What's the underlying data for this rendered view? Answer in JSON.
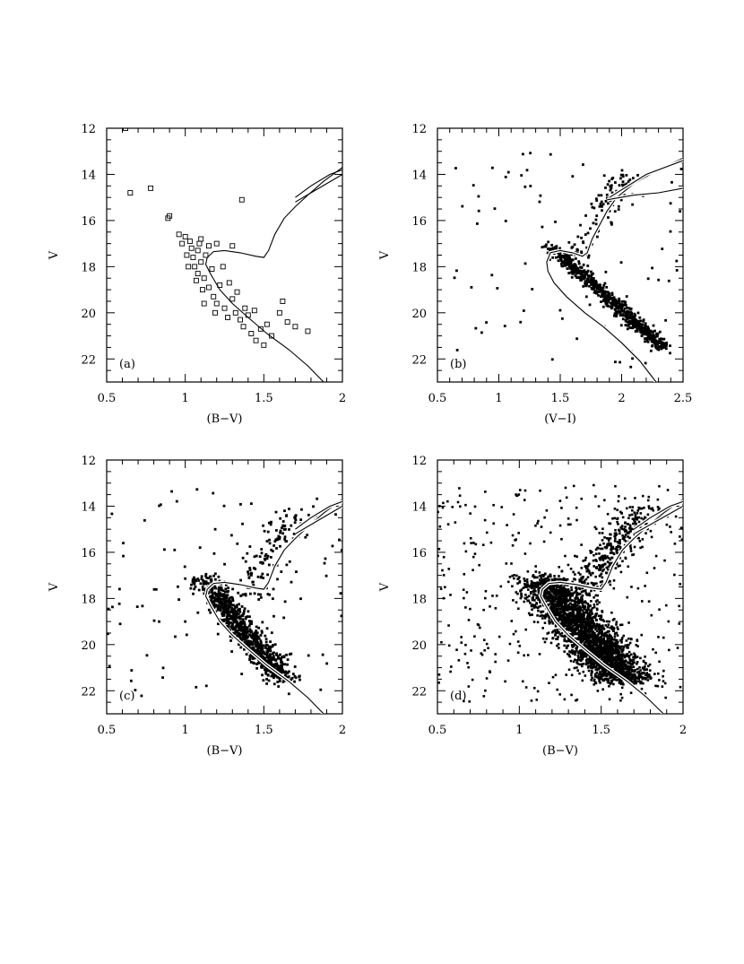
{
  "chart_data": [
    {
      "type": "scatter",
      "panel_label": "(a)",
      "xlabel": "(B−V)",
      "ylabel": "V",
      "xlim": [
        0.5,
        2
      ],
      "ylim": [
        12,
        23
      ],
      "y_inverted": true,
      "xticks": [
        "0.5",
        "1",
        "1.5",
        "2"
      ],
      "yticks": [
        "12",
        "14",
        "16",
        "18",
        "20",
        "22"
      ],
      "marker": "open-square",
      "points": [
        [
          0.62,
          12.0
        ],
        [
          0.65,
          14.8
        ],
        [
          0.78,
          14.6
        ],
        [
          0.89,
          15.9
        ],
        [
          0.9,
          15.8
        ],
        [
          0.96,
          16.6
        ],
        [
          0.98,
          17.0
        ],
        [
          1.0,
          16.7
        ],
        [
          1.01,
          17.5
        ],
        [
          1.03,
          16.9
        ],
        [
          1.05,
          17.6
        ],
        [
          1.06,
          18.0
        ],
        [
          1.08,
          17.3
        ],
        [
          1.08,
          18.3
        ],
        [
          1.1,
          17.8
        ],
        [
          1.12,
          18.5
        ],
        [
          1.1,
          16.8
        ],
        [
          1.15,
          17.1
        ],
        [
          1.17,
          18.1
        ],
        [
          1.2,
          17.0
        ],
        [
          1.02,
          18.0
        ],
        [
          1.04,
          17.2
        ],
        [
          1.07,
          18.6
        ],
        [
          1.09,
          17.0
        ],
        [
          1.11,
          19.0
        ],
        [
          1.13,
          17.5
        ],
        [
          1.15,
          18.9
        ],
        [
          1.18,
          19.3
        ],
        [
          1.2,
          19.6
        ],
        [
          1.22,
          18.8
        ],
        [
          1.25,
          19.8
        ],
        [
          1.27,
          20.2
        ],
        [
          1.3,
          19.4
        ],
        [
          1.32,
          20.0
        ],
        [
          1.35,
          20.3
        ],
        [
          1.37,
          20.6
        ],
        [
          1.4,
          20.1
        ],
        [
          1.42,
          20.9
        ],
        [
          1.45,
          21.2
        ],
        [
          1.48,
          20.7
        ],
        [
          1.5,
          21.4
        ],
        [
          1.52,
          20.5
        ],
        [
          1.55,
          21.0
        ],
        [
          1.3,
          17.1
        ],
        [
          1.36,
          15.1
        ],
        [
          1.62,
          19.5
        ],
        [
          1.65,
          20.4
        ],
        [
          1.7,
          20.6
        ],
        [
          1.78,
          20.8
        ],
        [
          1.24,
          18.0
        ],
        [
          1.28,
          18.7
        ],
        [
          1.33,
          19.1
        ],
        [
          1.38,
          19.8
        ],
        [
          1.44,
          19.9
        ],
        [
          1.6,
          20.0
        ],
        [
          1.12,
          19.6
        ],
        [
          1.19,
          20.0
        ]
      ]
    },
    {
      "type": "scatter",
      "panel_label": "(b)",
      "xlabel": "(V−I)",
      "ylabel": "V",
      "xlim": [
        0.5,
        2.5
      ],
      "ylim": [
        12,
        23
      ],
      "y_inverted": true,
      "xticks": [
        "0.5",
        "1",
        "1.5",
        "2",
        "2.5"
      ],
      "yticks": [
        "12",
        "14",
        "16",
        "18",
        "20",
        "22"
      ],
      "marker": "filled-dot"
    },
    {
      "type": "scatter",
      "panel_label": "(c)",
      "xlabel": "(B−V)",
      "ylabel": "V",
      "xlim": [
        0.5,
        2
      ],
      "ylim": [
        12,
        23
      ],
      "y_inverted": true,
      "xticks": [
        "0.5",
        "1",
        "1.5",
        "2"
      ],
      "yticks": [
        "12",
        "14",
        "16",
        "18",
        "20",
        "22"
      ],
      "marker": "filled-dot"
    },
    {
      "type": "scatter",
      "panel_label": "(d)",
      "xlabel": "(B−V)",
      "ylabel": "V",
      "xlim": [
        0.5,
        2
      ],
      "ylim": [
        12,
        23
      ],
      "y_inverted": true,
      "xticks": [
        "0.5",
        "1",
        "1.5",
        "2"
      ],
      "yticks": [
        "12",
        "14",
        "16",
        "18",
        "20",
        "22"
      ],
      "marker": "filled-dot"
    }
  ]
}
